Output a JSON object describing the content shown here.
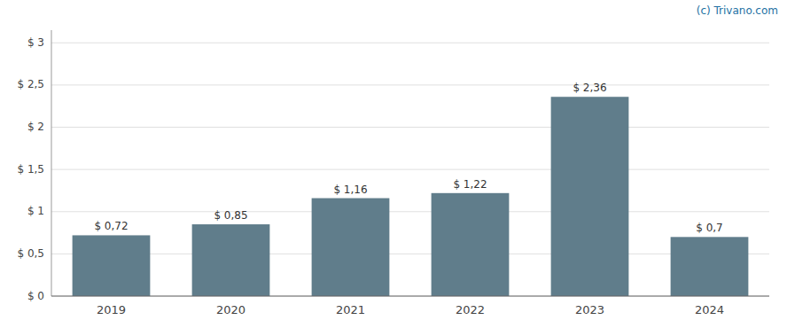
{
  "chart_data": {
    "type": "bar",
    "annotations": [
      "(c) Trivano.com"
    ],
    "categories": [
      "2019",
      "2020",
      "2021",
      "2022",
      "2023",
      "2024"
    ],
    "values": [
      0.72,
      0.85,
      1.16,
      1.22,
      2.36,
      0.7
    ],
    "value_labels": [
      "$ 0,72",
      "$ 0,85",
      "$ 1,16",
      "$ 1,22",
      "$ 2,36",
      "$ 0,7"
    ],
    "color": "#607d8b",
    "ylim": [
      0,
      3.15
    ],
    "yticks": [
      {
        "value": 0,
        "label": "$ 0"
      },
      {
        "value": 0.5,
        "label": "$ 0,5"
      },
      {
        "value": 1.0,
        "label": "$ 1"
      },
      {
        "value": 1.5,
        "label": "$ 1,5"
      },
      {
        "value": 2.0,
        "label": "$ 2"
      },
      {
        "value": 2.5,
        "label": "$ 2,5"
      },
      {
        "value": 3.0,
        "label": "$ 3"
      }
    ],
    "grid": true,
    "data_labels": true
  }
}
